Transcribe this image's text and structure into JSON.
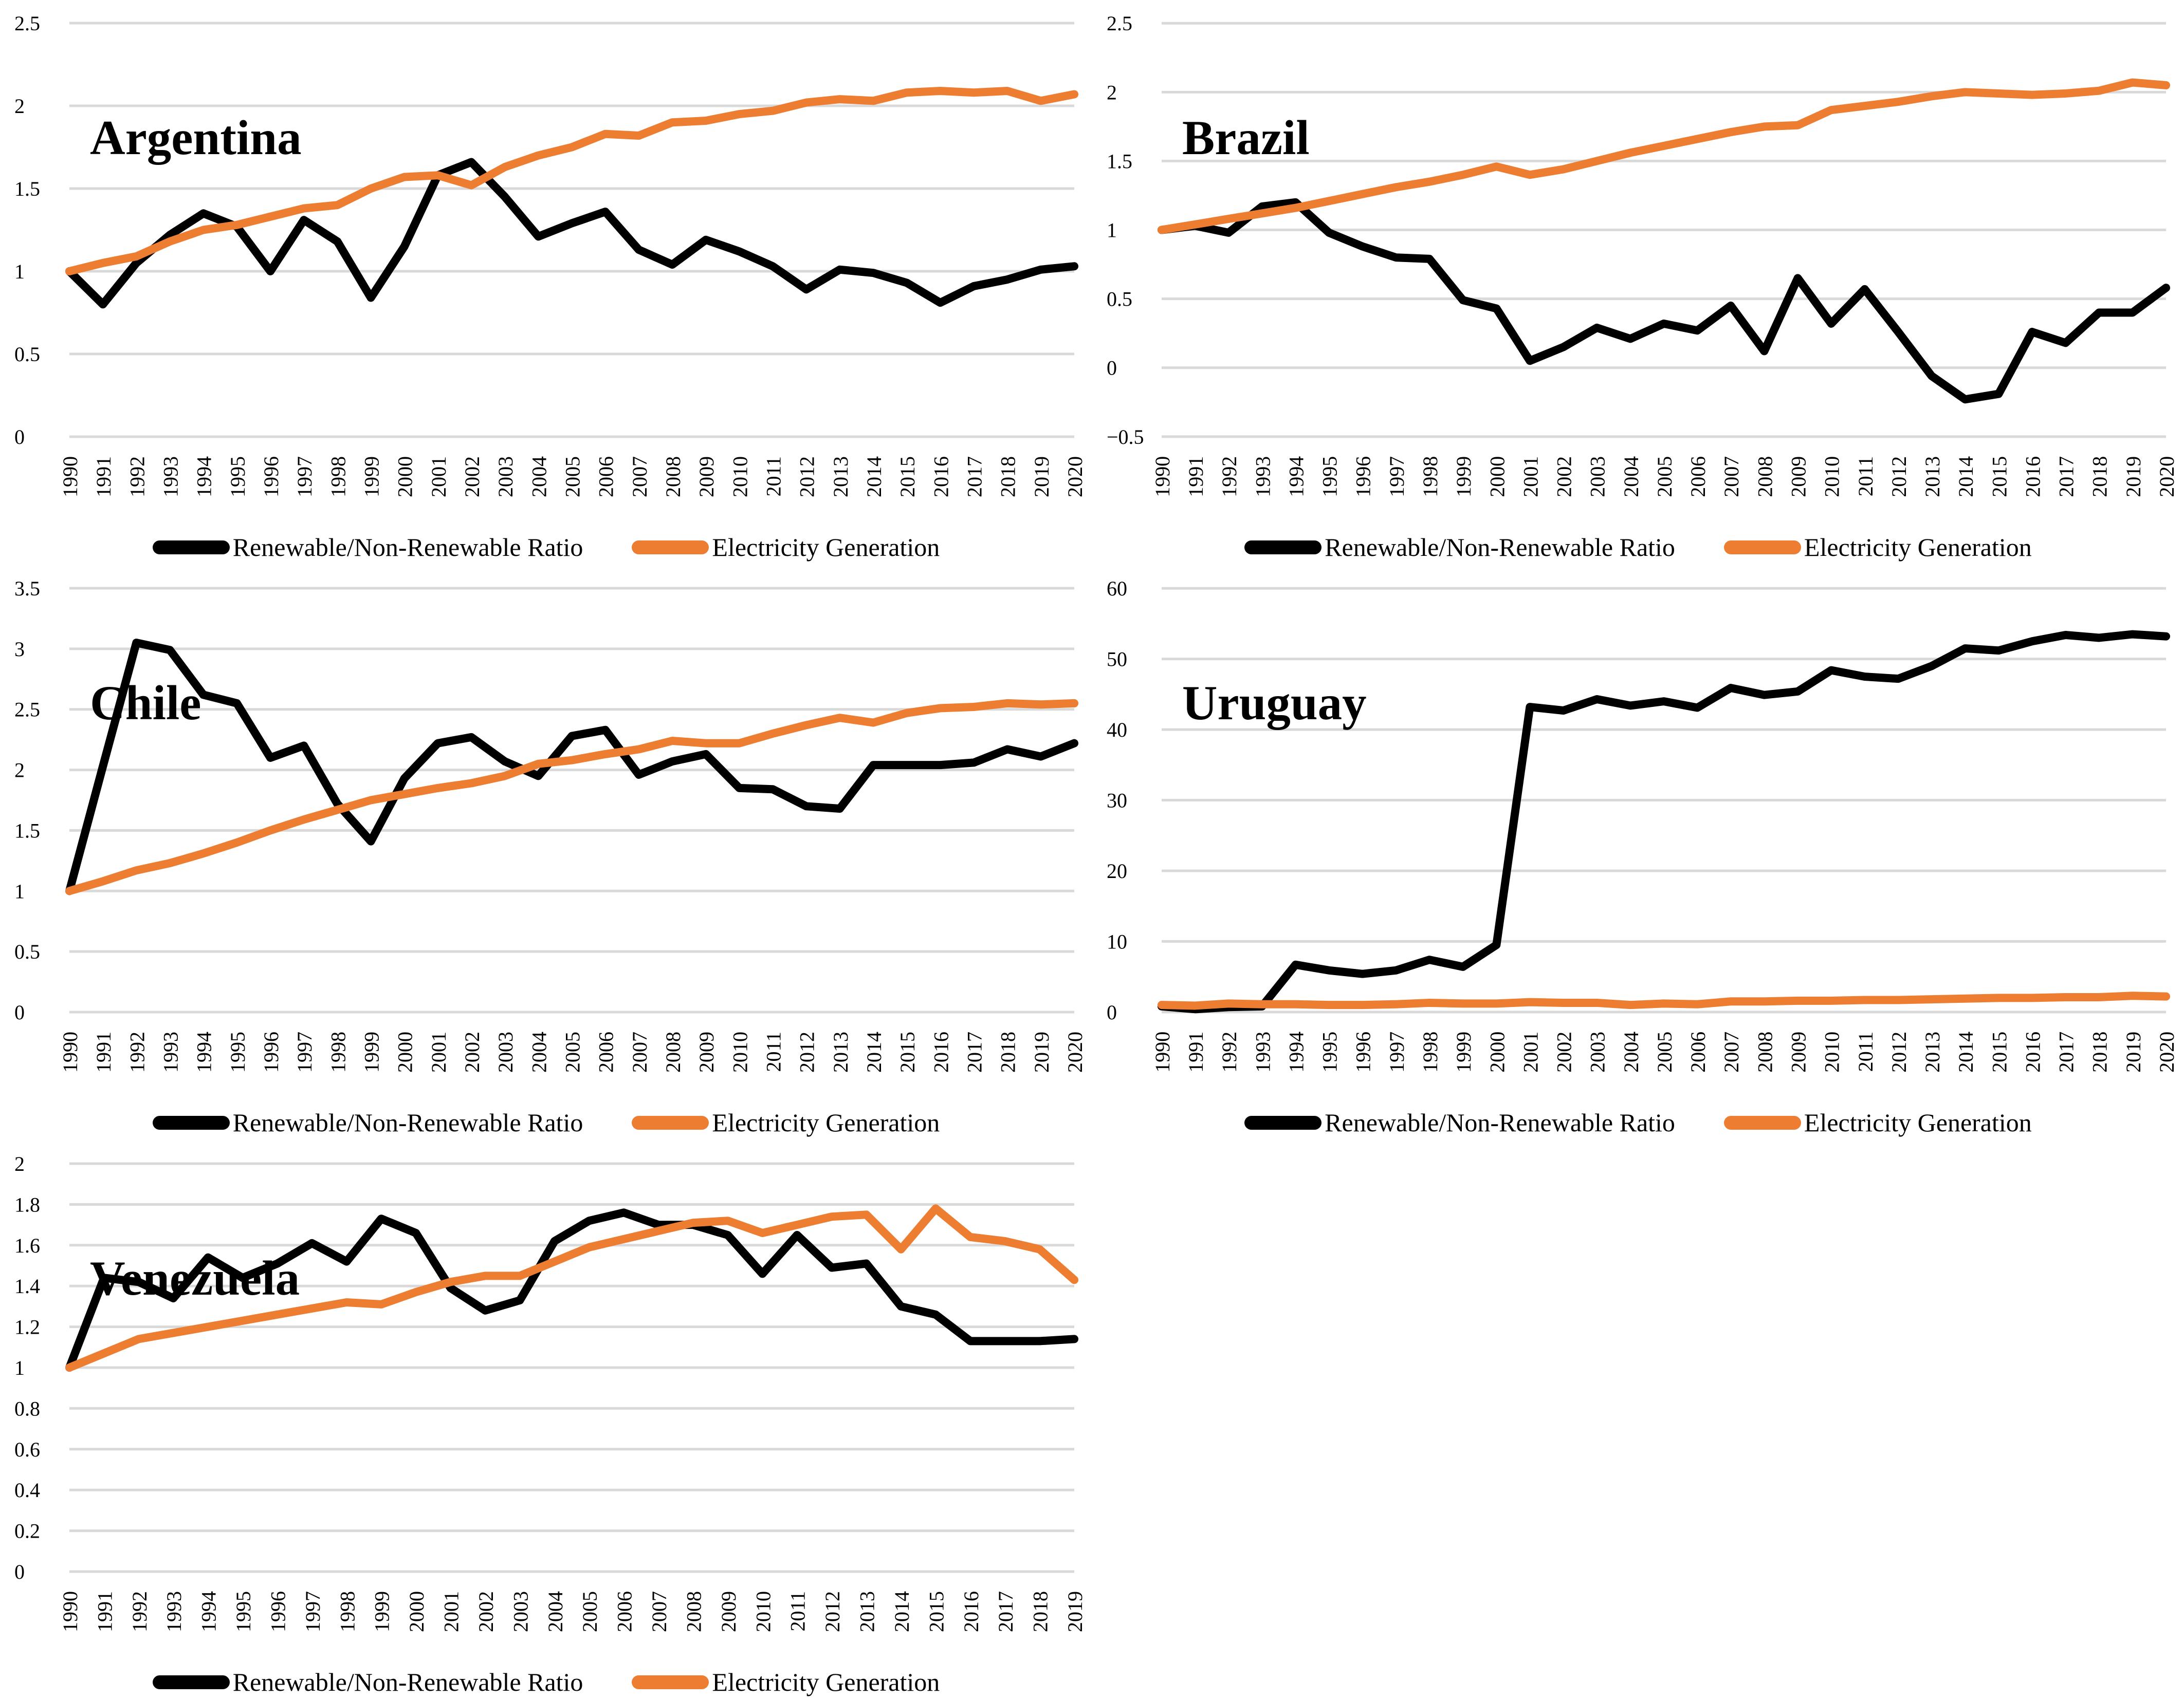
{
  "page": {
    "background": "#FFFFFF"
  },
  "colors": {
    "ratio_line": "#000000",
    "generation_line": "#ED7D31",
    "gridline": "#D9D9D9",
    "text": "#000000"
  },
  "legend_labels": [
    "Renewable/Non-Renewable Ratio",
    "Electricity Generation"
  ],
  "chart_data": [
    {
      "type": "line",
      "title": "Argentina",
      "grid": true,
      "legend_position": "bottom",
      "x_label_rotation": -90,
      "ylim": [
        0,
        2.5
      ],
      "yticks": [
        0,
        0.5,
        1,
        1.5,
        2,
        2.5
      ],
      "years": [
        1990,
        1991,
        1992,
        1993,
        1994,
        1995,
        1996,
        1997,
        1998,
        1999,
        2000,
        2001,
        2002,
        2003,
        2004,
        2005,
        2006,
        2007,
        2008,
        2009,
        2010,
        2011,
        2012,
        2013,
        2014,
        2015,
        2016,
        2017,
        2018,
        2019,
        2020
      ],
      "series": [
        {
          "name": "Renewable/Non-Renewable Ratio",
          "color": "#000000",
          "values": [
            1.0,
            0.8,
            1.05,
            1.22,
            1.35,
            1.27,
            1.0,
            1.31,
            1.18,
            0.84,
            1.15,
            1.58,
            1.66,
            1.45,
            1.21,
            1.29,
            1.36,
            1.13,
            1.04,
            1.19,
            1.12,
            1.03,
            0.89,
            1.01,
            0.99,
            0.93,
            0.81,
            0.91,
            0.95,
            1.01,
            1.03
          ]
        },
        {
          "name": "Electricity Generation",
          "color": "#ED7D31",
          "values": [
            1.0,
            1.05,
            1.09,
            1.18,
            1.25,
            1.28,
            1.33,
            1.38,
            1.4,
            1.5,
            1.57,
            1.58,
            1.52,
            1.63,
            1.7,
            1.75,
            1.83,
            1.82,
            1.9,
            1.91,
            1.95,
            1.97,
            2.02,
            2.04,
            2.03,
            2.08,
            2.09,
            2.08,
            2.09,
            2.03,
            2.07
          ]
        }
      ]
    },
    {
      "type": "line",
      "title": "Brazil",
      "grid": true,
      "legend_position": "bottom",
      "x_label_rotation": -90,
      "ylim": [
        -0.5,
        2.5
      ],
      "yticks": [
        -0.5,
        0,
        0.5,
        1,
        1.5,
        2,
        2.5
      ],
      "years": [
        1990,
        1991,
        1992,
        1993,
        1994,
        1995,
        1996,
        1997,
        1998,
        1999,
        2000,
        2001,
        2002,
        2003,
        2004,
        2005,
        2006,
        2007,
        2008,
        2009,
        2010,
        2011,
        2012,
        2013,
        2014,
        2015,
        2016,
        2017,
        2018,
        2019,
        2020
      ],
      "series": [
        {
          "name": "Renewable/Non-Renewable Ratio",
          "color": "#000000",
          "values": [
            1.0,
            1.03,
            0.98,
            1.17,
            1.2,
            0.98,
            0.88,
            0.8,
            0.79,
            0.49,
            0.43,
            0.05,
            0.15,
            0.29,
            0.21,
            0.32,
            0.27,
            0.45,
            0.12,
            0.65,
            0.32,
            0.57,
            0.26,
            -0.06,
            -0.23,
            -0.19,
            0.26,
            0.18,
            0.4,
            0.4,
            0.58
          ]
        },
        {
          "name": "Electricity Generation",
          "color": "#ED7D31",
          "values": [
            1.0,
            1.04,
            1.08,
            1.12,
            1.16,
            1.21,
            1.26,
            1.31,
            1.35,
            1.4,
            1.46,
            1.4,
            1.44,
            1.5,
            1.56,
            1.61,
            1.66,
            1.71,
            1.75,
            1.76,
            1.87,
            1.9,
            1.93,
            1.97,
            2.0,
            1.99,
            1.98,
            1.99,
            2.01,
            2.07,
            2.05
          ]
        }
      ]
    },
    {
      "type": "line",
      "title": "Chile",
      "grid": true,
      "legend_position": "bottom",
      "x_label_rotation": -90,
      "ylim": [
        0,
        3.5
      ],
      "yticks": [
        0,
        0.5,
        1,
        1.5,
        2,
        2.5,
        3,
        3.5
      ],
      "years": [
        1990,
        1991,
        1992,
        1993,
        1994,
        1995,
        1996,
        1997,
        1998,
        1999,
        2000,
        2001,
        2002,
        2003,
        2004,
        2005,
        2006,
        2007,
        2008,
        2009,
        2010,
        2011,
        2012,
        2013,
        2014,
        2015,
        2016,
        2017,
        2018,
        2019,
        2020
      ],
      "series": [
        {
          "name": "Renewable/Non-Renewable Ratio",
          "color": "#000000",
          "values": [
            1.0,
            2.03,
            3.05,
            2.99,
            2.62,
            2.55,
            2.1,
            2.2,
            1.72,
            1.41,
            1.93,
            2.22,
            2.27,
            2.07,
            1.95,
            2.28,
            2.33,
            1.96,
            2.07,
            2.13,
            1.85,
            1.84,
            1.7,
            1.68,
            2.04,
            2.04,
            2.04,
            2.06,
            2.17,
            2.11,
            2.22
          ]
        },
        {
          "name": "Electricity Generation",
          "color": "#ED7D31",
          "values": [
            1.0,
            1.08,
            1.17,
            1.23,
            1.31,
            1.4,
            1.5,
            1.59,
            1.67,
            1.75,
            1.8,
            1.85,
            1.89,
            1.95,
            2.05,
            2.08,
            2.13,
            2.17,
            2.24,
            2.22,
            2.22,
            2.3,
            2.37,
            2.43,
            2.39,
            2.47,
            2.51,
            2.52,
            2.55,
            2.54,
            2.55
          ]
        }
      ]
    },
    {
      "type": "line",
      "title": "Uruguay",
      "grid": true,
      "legend_position": "bottom",
      "x_label_rotation": -90,
      "ylim": [
        0,
        60
      ],
      "yticks": [
        0,
        10,
        20,
        30,
        40,
        50,
        60
      ],
      "years": [
        1990,
        1991,
        1992,
        1993,
        1994,
        1995,
        1996,
        1997,
        1998,
        1999,
        2000,
        2001,
        2002,
        2003,
        2004,
        2005,
        2006,
        2007,
        2008,
        2009,
        2010,
        2011,
        2012,
        2013,
        2014,
        2015,
        2016,
        2017,
        2018,
        2019,
        2020
      ],
      "series": [
        {
          "name": "Renewable/Non-Renewable Ratio",
          "color": "#000000",
          "values": [
            0.8,
            0.4,
            0.7,
            0.8,
            6.7,
            5.9,
            5.4,
            5.9,
            7.4,
            6.4,
            9.5,
            43.2,
            42.7,
            44.3,
            43.4,
            44.0,
            43.1,
            45.9,
            44.9,
            45.4,
            48.4,
            47.5,
            47.2,
            49.0,
            51.5,
            51.2,
            52.5,
            53.4,
            53.0,
            53.5,
            53.2
          ]
        },
        {
          "name": "Electricity Generation",
          "color": "#ED7D31",
          "values": [
            1.0,
            0.9,
            1.2,
            1.1,
            1.1,
            1.0,
            1.0,
            1.1,
            1.3,
            1.2,
            1.2,
            1.4,
            1.3,
            1.3,
            1.0,
            1.2,
            1.1,
            1.5,
            1.5,
            1.6,
            1.6,
            1.7,
            1.7,
            1.8,
            1.9,
            2.0,
            2.0,
            2.1,
            2.1,
            2.3,
            2.2
          ]
        }
      ]
    },
    {
      "type": "line",
      "title": "Venezuela",
      "grid": true,
      "legend_position": "bottom",
      "x_label_rotation": -90,
      "ylim": [
        0,
        2
      ],
      "yticks": [
        0,
        0.2,
        0.4,
        0.6,
        0.8,
        1,
        1.2,
        1.4,
        1.6,
        1.8,
        2
      ],
      "years": [
        1990,
        1991,
        1992,
        1993,
        1994,
        1995,
        1996,
        1997,
        1998,
        1999,
        2000,
        2001,
        2002,
        2003,
        2004,
        2005,
        2006,
        2007,
        2008,
        2009,
        2010,
        2011,
        2012,
        2013,
        2014,
        2015,
        2016,
        2017,
        2018,
        2019
      ],
      "series": [
        {
          "name": "Renewable/Non-Renewable Ratio",
          "color": "#000000",
          "values": [
            1.0,
            1.44,
            1.42,
            1.34,
            1.54,
            1.44,
            1.51,
            1.61,
            1.52,
            1.73,
            1.66,
            1.39,
            1.28,
            1.33,
            1.62,
            1.72,
            1.76,
            1.7,
            1.7,
            1.65,
            1.46,
            1.65,
            1.49,
            1.51,
            1.3,
            1.26,
            1.13,
            1.13,
            1.13,
            1.14
          ]
        },
        {
          "name": "Electricity Generation",
          "color": "#ED7D31",
          "values": [
            1.0,
            1.07,
            1.14,
            1.17,
            1.2,
            1.23,
            1.26,
            1.29,
            1.32,
            1.31,
            1.37,
            1.42,
            1.45,
            1.45,
            1.52,
            1.59,
            1.63,
            1.67,
            1.71,
            1.72,
            1.66,
            1.7,
            1.74,
            1.75,
            1.58,
            1.78,
            1.64,
            1.62,
            1.58,
            1.43
          ]
        }
      ]
    }
  ]
}
